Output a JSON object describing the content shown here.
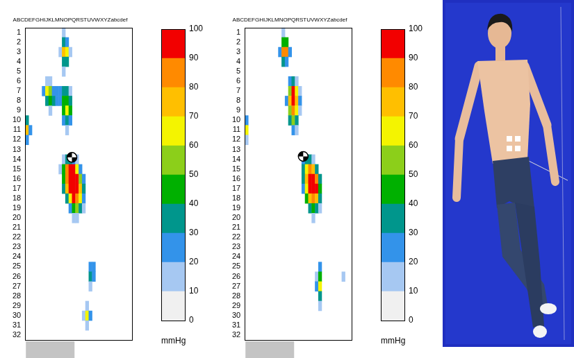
{
  "chart_data": [
    {
      "type": "heatmap",
      "title": "ABCDEFGHIJKLMNOPQRSTUVWXYZabcdef",
      "xlim": [
        0.5,
        32.5
      ],
      "ylim": [
        0.5,
        32.5
      ],
      "yticks": [
        1,
        2,
        3,
        4,
        5,
        6,
        7,
        8,
        9,
        10,
        11,
        12,
        13,
        14,
        15,
        16,
        17,
        18,
        19,
        20,
        21,
        22,
        23,
        24,
        25,
        26,
        27,
        28,
        29,
        30,
        31,
        32
      ],
      "tick_labels": "y",
      "cells": [
        [
          12,
          1,
          12
        ],
        [
          12,
          2,
          30
        ],
        [
          13,
          2,
          25
        ],
        [
          11,
          3,
          15
        ],
        [
          12,
          3,
          75
        ],
        [
          13,
          3,
          60
        ],
        [
          14,
          3,
          15
        ],
        [
          12,
          4,
          35
        ],
        [
          13,
          4,
          30
        ],
        [
          12,
          5,
          12
        ],
        [
          7,
          6,
          15
        ],
        [
          8,
          6,
          15
        ],
        [
          6,
          7,
          20
        ],
        [
          7,
          7,
          65
        ],
        [
          8,
          7,
          55
        ],
        [
          9,
          7,
          25
        ],
        [
          10,
          7,
          20
        ],
        [
          11,
          7,
          25
        ],
        [
          12,
          7,
          35
        ],
        [
          13,
          7,
          30
        ],
        [
          14,
          7,
          15
        ],
        [
          7,
          8,
          35
        ],
        [
          8,
          8,
          40
        ],
        [
          9,
          8,
          30
        ],
        [
          10,
          8,
          20
        ],
        [
          11,
          8,
          20
        ],
        [
          12,
          8,
          40
        ],
        [
          13,
          8,
          45
        ],
        [
          14,
          8,
          30
        ],
        [
          8,
          9,
          15
        ],
        [
          12,
          9,
          45
        ],
        [
          13,
          9,
          60
        ],
        [
          14,
          9,
          40
        ],
        [
          1,
          10,
          35
        ],
        [
          12,
          10,
          25
        ],
        [
          13,
          10,
          35
        ],
        [
          14,
          10,
          25
        ],
        [
          1,
          11,
          70
        ],
        [
          2,
          11,
          20
        ],
        [
          13,
          11,
          15
        ],
        [
          1,
          12,
          20
        ],
        [
          12,
          14,
          15
        ],
        [
          13,
          14,
          30
        ],
        [
          14,
          14,
          35
        ],
        [
          15,
          14,
          25
        ],
        [
          16,
          14,
          15
        ],
        [
          11,
          15,
          15
        ],
        [
          12,
          15,
          40
        ],
        [
          13,
          15,
          80
        ],
        [
          14,
          15,
          95
        ],
        [
          15,
          15,
          90
        ],
        [
          16,
          15,
          60
        ],
        [
          17,
          15,
          25
        ],
        [
          12,
          16,
          45
        ],
        [
          13,
          16,
          85
        ],
        [
          14,
          16,
          98
        ],
        [
          15,
          16,
          100
        ],
        [
          16,
          16,
          90
        ],
        [
          17,
          16,
          55
        ],
        [
          18,
          16,
          20
        ],
        [
          12,
          17,
          30
        ],
        [
          13,
          17,
          70
        ],
        [
          14,
          17,
          95
        ],
        [
          15,
          17,
          100
        ],
        [
          16,
          17,
          95
        ],
        [
          17,
          17,
          70
        ],
        [
          18,
          17,
          30
        ],
        [
          13,
          18,
          35
        ],
        [
          14,
          18,
          65
        ],
        [
          15,
          18,
          90
        ],
        [
          16,
          18,
          85
        ],
        [
          17,
          18,
          60
        ],
        [
          18,
          18,
          25
        ],
        [
          14,
          19,
          25
        ],
        [
          15,
          19,
          45
        ],
        [
          16,
          19,
          50
        ],
        [
          17,
          19,
          35
        ],
        [
          18,
          19,
          15
        ],
        [
          15,
          20,
          15
        ],
        [
          16,
          20,
          15
        ],
        [
          20,
          25,
          25
        ],
        [
          21,
          25,
          20
        ],
        [
          20,
          26,
          30
        ],
        [
          21,
          26,
          25
        ],
        [
          20,
          27,
          12
        ],
        [
          19,
          29,
          15
        ],
        [
          18,
          30,
          15
        ],
        [
          19,
          30,
          65
        ],
        [
          20,
          30,
          20
        ],
        [
          19,
          31,
          12
        ]
      ],
      "center_of_pressure": [
        14.5,
        13.8
      ],
      "colorbar": {
        "range": [
          0,
          100
        ],
        "ticks": [
          0,
          10,
          20,
          30,
          40,
          50,
          60,
          70,
          80,
          90,
          100
        ],
        "colors": [
          "#f0f0f0",
          "#a6c8f2",
          "#3393ea",
          "#00968c",
          "#00b000",
          "#8ccf1a",
          "#f4f400",
          "#ffbf00",
          "#ff8a00",
          "#f20000"
        ],
        "label": "mmHg"
      }
    },
    {
      "type": "heatmap",
      "title": "ABCDEFGHIJKLMNOPQRSTUVWXYZabcdef",
      "xlim": [
        0.5,
        32.5
      ],
      "ylim": [
        0.5,
        32.5
      ],
      "yticks": [
        1,
        2,
        3,
        4,
        5,
        6,
        7,
        8,
        9,
        10,
        11,
        12,
        13,
        14,
        15,
        16,
        17,
        18,
        19,
        20,
        21,
        22,
        23,
        24,
        25,
        26,
        27,
        28,
        29,
        30,
        31,
        32
      ],
      "tick_labels": "y",
      "cells": [
        [
          12,
          1,
          15
        ],
        [
          12,
          2,
          45
        ],
        [
          13,
          2,
          40
        ],
        [
          11,
          3,
          20
        ],
        [
          12,
          3,
          85
        ],
        [
          13,
          3,
          80
        ],
        [
          14,
          3,
          20
        ],
        [
          12,
          4,
          30
        ],
        [
          13,
          4,
          25
        ],
        [
          14,
          6,
          25
        ],
        [
          15,
          6,
          30
        ],
        [
          16,
          6,
          15
        ],
        [
          14,
          7,
          50
        ],
        [
          15,
          7,
          90
        ],
        [
          16,
          7,
          60
        ],
        [
          17,
          7,
          15
        ],
        [
          13,
          8,
          25
        ],
        [
          14,
          8,
          70
        ],
        [
          15,
          8,
          95
        ],
        [
          16,
          8,
          70
        ],
        [
          17,
          8,
          20
        ],
        [
          14,
          9,
          55
        ],
        [
          15,
          9,
          85
        ],
        [
          16,
          9,
          60
        ],
        [
          17,
          9,
          15
        ],
        [
          1,
          10,
          25
        ],
        [
          14,
          10,
          30
        ],
        [
          15,
          10,
          55
        ],
        [
          16,
          10,
          35
        ],
        [
          1,
          11,
          65
        ],
        [
          15,
          11,
          20
        ],
        [
          16,
          11,
          15
        ],
        [
          1,
          12,
          15
        ],
        [
          18,
          14,
          20
        ],
        [
          19,
          14,
          35
        ],
        [
          20,
          14,
          30
        ],
        [
          21,
          14,
          15
        ],
        [
          18,
          15,
          30
        ],
        [
          19,
          15,
          60
        ],
        [
          20,
          15,
          85
        ],
        [
          21,
          15,
          70
        ],
        [
          22,
          15,
          35
        ],
        [
          18,
          16,
          30
        ],
        [
          19,
          16,
          70
        ],
        [
          20,
          16,
          98
        ],
        [
          21,
          16,
          100
        ],
        [
          22,
          16,
          80
        ],
        [
          23,
          16,
          30
        ],
        [
          18,
          17,
          20
        ],
        [
          19,
          17,
          60
        ],
        [
          20,
          17,
          95
        ],
        [
          21,
          17,
          100
        ],
        [
          22,
          17,
          90
        ],
        [
          23,
          17,
          40
        ],
        [
          19,
          18,
          40
        ],
        [
          20,
          18,
          75
        ],
        [
          21,
          18,
          85
        ],
        [
          22,
          18,
          70
        ],
        [
          23,
          18,
          30
        ],
        [
          20,
          19,
          35
        ],
        [
          21,
          19,
          45
        ],
        [
          22,
          19,
          35
        ],
        [
          23,
          19,
          15
        ],
        [
          21,
          20,
          15
        ],
        [
          23,
          25,
          25
        ],
        [
          22,
          26,
          15
        ],
        [
          23,
          26,
          45
        ],
        [
          22,
          27,
          20
        ],
        [
          23,
          27,
          60
        ],
        [
          23,
          28,
          35
        ],
        [
          23,
          29,
          12
        ],
        [
          30,
          26,
          12
        ]
      ],
      "center_of_pressure": [
        18,
        13.7
      ],
      "colorbar": {
        "range": [
          0,
          100
        ],
        "ticks": [
          0,
          10,
          20,
          30,
          40,
          50,
          60,
          70,
          80,
          90,
          100
        ],
        "colors": [
          "#f0f0f0",
          "#a6c8f2",
          "#3393ea",
          "#00968c",
          "#00b000",
          "#8ccf1a",
          "#f4f400",
          "#ffbf00",
          "#ff8a00",
          "#f20000"
        ],
        "label": "mmHg"
      }
    }
  ]
}
